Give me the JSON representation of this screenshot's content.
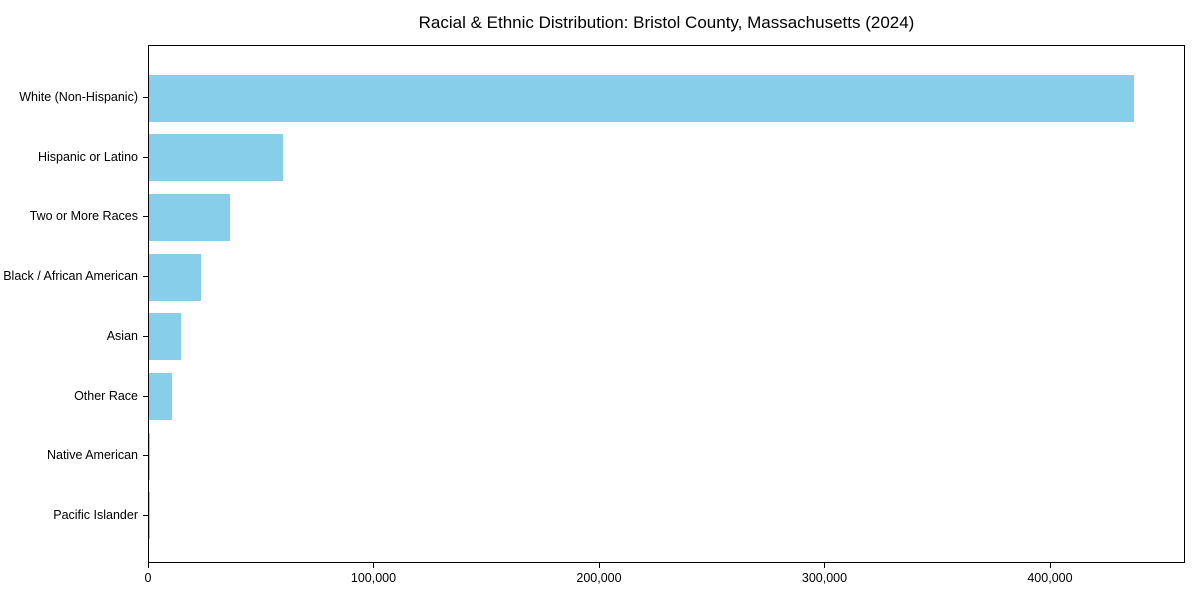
{
  "title": "Racial & Ethnic Distribution: Bristol County, Massachusetts (2024)",
  "colors": {
    "bar": "#87CEEB",
    "axis": "#000000",
    "background": "#FFFFFF",
    "text": "#000000"
  },
  "chart_data": {
    "type": "bar",
    "orientation": "horizontal",
    "title": "Racial & Ethnic Distribution: Bristol County, Massachusetts (2024)",
    "categories": [
      "White (Non-Hispanic)",
      "Hispanic or Latino",
      "Two or More Races",
      "Black / African American",
      "Asian",
      "Other Race",
      "Native American",
      "Pacific Islander"
    ],
    "values": [
      437000,
      59500,
      36000,
      23000,
      14300,
      10000,
      600,
      100
    ],
    "xlabel": "",
    "ylabel": "",
    "xlim": [
      0,
      459000
    ],
    "xticks": [
      0,
      100000,
      200000,
      300000,
      400000
    ],
    "xtick_labels": [
      "0",
      "100,000",
      "200,000",
      "300,000",
      "400,000"
    ],
    "grid": false,
    "legend": null,
    "bar_color": "#87CEEB"
  }
}
